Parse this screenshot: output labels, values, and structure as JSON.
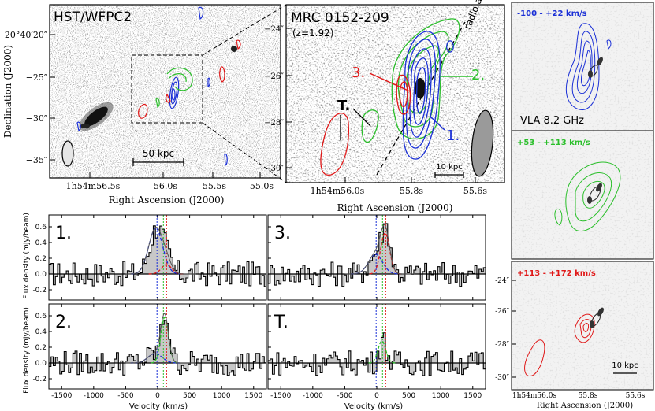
{
  "panelA": {
    "title": "HST/WFPC2",
    "ylabel": "Declination (J2000)",
    "xlabel": "Right Ascension (J2000)",
    "yticks": [
      "−20°40′20″",
      "−25″",
      "−30″",
      "−35″"
    ],
    "xticks": [
      "1h54m56.5s",
      "56.0s",
      "55.5s",
      "55.0s"
    ],
    "scalebar": "50 kpc"
  },
  "panelB": {
    "title": "MRC 0152-209",
    "subtitle": "(z=1.92)",
    "xlabel": "Right Ascension (J2000)",
    "radio_axis": "radio axis",
    "yticks": [
      "−24″",
      "−26″",
      "−28″",
      "−30″"
    ],
    "xticks": [
      "1h54m56.0s",
      "55.8s",
      "55.6s"
    ],
    "labels": {
      "one": "1.",
      "two": "2.",
      "three": "3.",
      "T": "T."
    },
    "scalebar": "10 kpc"
  },
  "right": {
    "p1": {
      "label": "-100 - +22 km/s",
      "note": "VLA 8.2 GHz"
    },
    "p2": {
      "label": "+53 - +113 km/s"
    },
    "p3": {
      "label": "+113 - +172 km/s",
      "yticks": [
        "-24″",
        "-26″",
        "-28″",
        "-30″"
      ],
      "xticks": [
        "1h54m56.0s",
        "55.8s",
        "55.6s"
      ],
      "xlabel": "Right Ascension (J2000)",
      "scalebar": "10 kpc"
    }
  },
  "spectra": {
    "ylabel": "Flux density (mJy/beam)",
    "xlabel": "Velocity (km/s)",
    "xticks": [
      "-1500",
      "-1000",
      "-500",
      "0",
      "500",
      "1000",
      "1500"
    ],
    "yticks_top": [
      "0.6",
      "0.4",
      "0.2",
      "0.0",
      "-0.2"
    ],
    "yticks_bottom": [
      "0.6",
      "0.4",
      "0.2",
      "0.0",
      "-0.2"
    ],
    "panels": [
      "1.",
      "3.",
      "2.",
      "T."
    ]
  },
  "colors": {
    "blue": "#1a2fd6",
    "green": "#2bbf2b",
    "red": "#e01818",
    "fill": "#c8c8c8"
  }
}
